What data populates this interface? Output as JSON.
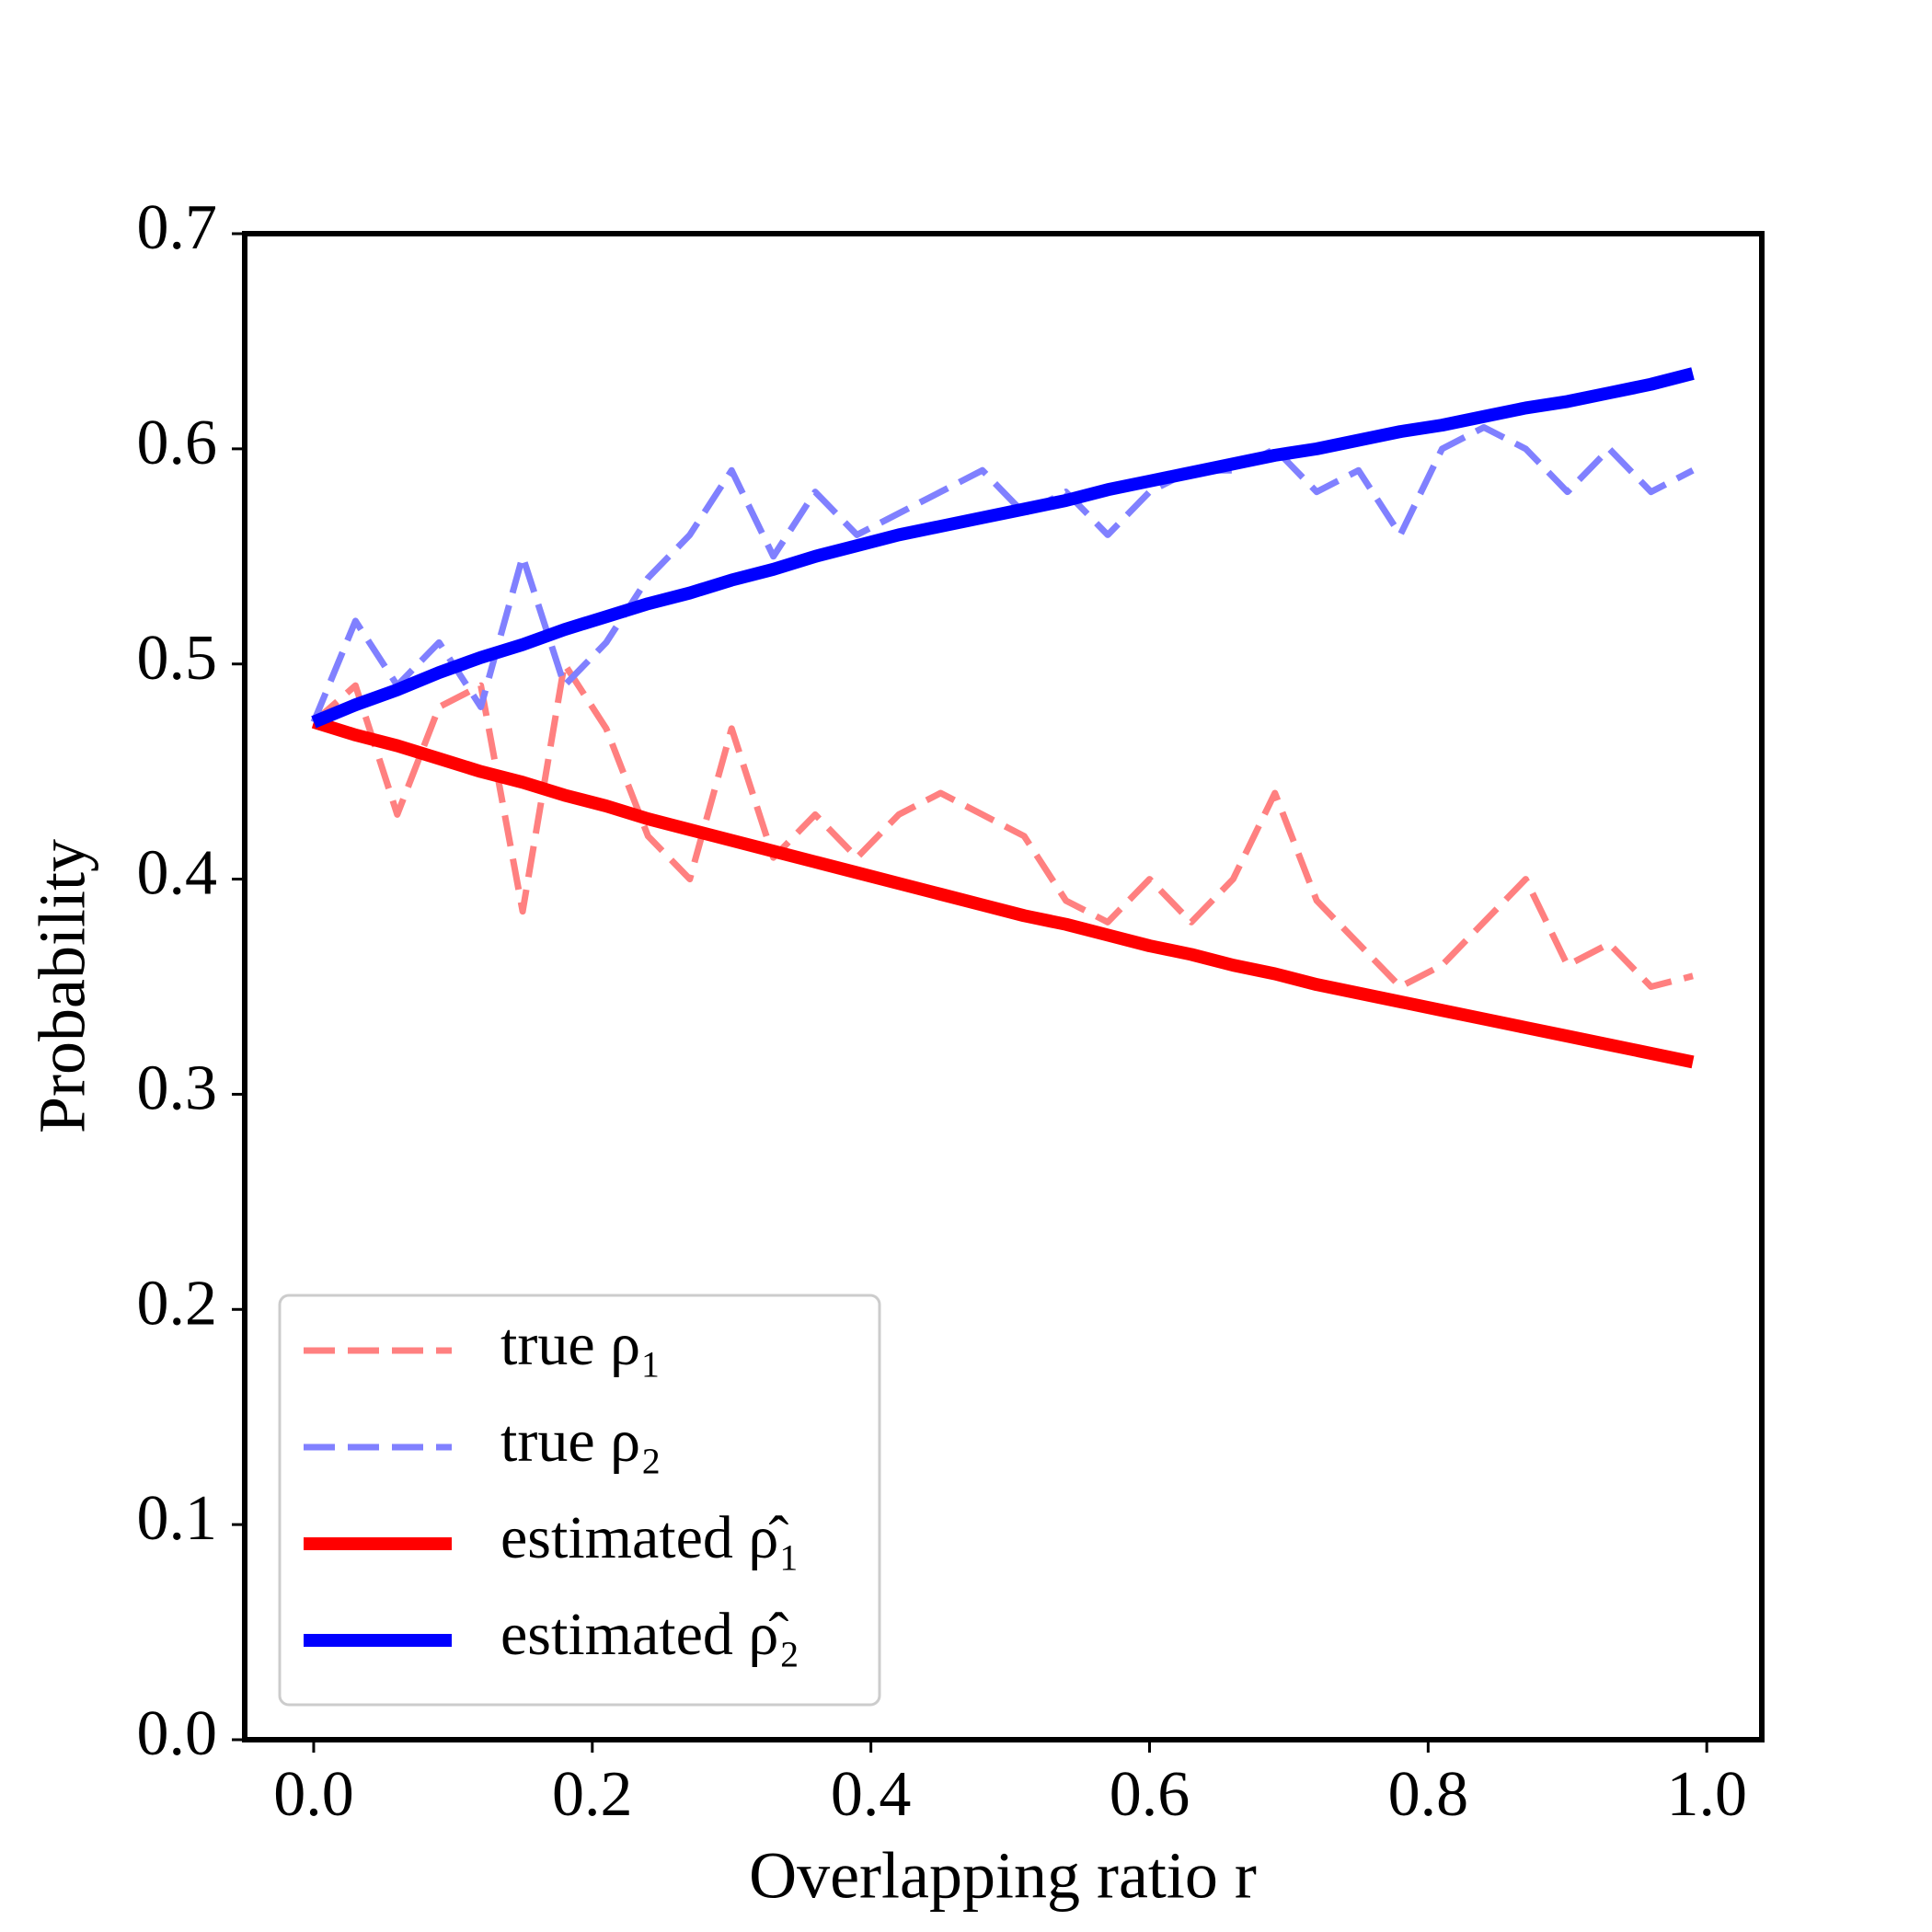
{
  "chart_data": {
    "type": "line",
    "xlabel": "Overlapping ratio r",
    "ylabel": "Probability",
    "x": [
      0,
      0.03,
      0.06,
      0.09,
      0.12,
      0.15,
      0.18,
      0.21,
      0.24,
      0.27,
      0.3,
      0.33,
      0.36,
      0.39,
      0.42,
      0.45,
      0.48,
      0.51,
      0.54,
      0.57,
      0.6,
      0.63,
      0.66,
      0.69,
      0.72,
      0.75,
      0.78,
      0.81,
      0.84,
      0.87,
      0.9,
      0.93,
      0.96,
      0.99
    ],
    "series": [
      {
        "name": "true ρ₁",
        "color": "#ff8080",
        "linestyle": "dashed",
        "values": [
          0.473,
          0.49,
          0.43,
          0.48,
          0.49,
          0.385,
          0.5,
          0.47,
          0.42,
          0.4,
          0.47,
          0.41,
          0.43,
          0.41,
          0.43,
          0.44,
          0.43,
          0.42,
          0.39,
          0.38,
          0.4,
          0.38,
          0.4,
          0.44,
          0.39,
          0.37,
          0.35,
          0.36,
          0.38,
          0.4,
          0.36,
          0.37,
          0.35,
          0.355
        ]
      },
      {
        "name": "true ρ₂",
        "color": "#8080ff",
        "linestyle": "dashed",
        "values": [
          0.473,
          0.52,
          0.49,
          0.51,
          0.48,
          0.55,
          0.49,
          0.51,
          0.54,
          0.56,
          0.59,
          0.55,
          0.58,
          0.56,
          0.57,
          0.58,
          0.59,
          0.57,
          0.58,
          0.56,
          0.58,
          0.59,
          0.59,
          0.6,
          0.58,
          0.59,
          0.56,
          0.6,
          0.61,
          0.6,
          0.58,
          0.6,
          0.58,
          0.59
        ]
      },
      {
        "name": "estimated ρ̂₁",
        "color": "#ff0000",
        "linestyle": "solid",
        "values": [
          0.473,
          0.467,
          0.462,
          0.456,
          0.45,
          0.445,
          0.439,
          0.434,
          0.428,
          0.423,
          0.418,
          0.413,
          0.408,
          0.403,
          0.398,
          0.393,
          0.388,
          0.383,
          0.379,
          0.374,
          0.369,
          0.365,
          0.36,
          0.356,
          0.351,
          0.347,
          0.343,
          0.339,
          0.335,
          0.331,
          0.327,
          0.323,
          0.319,
          0.315
        ]
      },
      {
        "name": "estimated ρ̂₂",
        "color": "#0000ff",
        "linestyle": "solid",
        "values": [
          0.473,
          0.481,
          0.488,
          0.496,
          0.503,
          0.509,
          0.516,
          0.522,
          0.528,
          0.533,
          0.539,
          0.544,
          0.55,
          0.555,
          0.56,
          0.564,
          0.568,
          0.572,
          0.576,
          0.581,
          0.585,
          0.589,
          0.593,
          0.597,
          0.6,
          0.604,
          0.608,
          0.611,
          0.615,
          0.619,
          0.622,
          0.626,
          0.63,
          0.635
        ]
      }
    ],
    "xlim": [
      -0.0495,
      1.0395
    ],
    "ylim": [
      0,
      0.7
    ],
    "xticks": [
      {
        "value": 0,
        "label": "0.0"
      },
      0.2,
      0.4,
      0.6,
      0.8,
      {
        "value": 1,
        "label": "1.0"
      }
    ],
    "yticks": [
      {
        "value": 0,
        "label": "0.0"
      },
      0.1,
      0.2,
      0.3,
      0.4,
      0.5,
      0.6,
      0.7
    ],
    "legend": "lower left",
    "grid": false
  }
}
